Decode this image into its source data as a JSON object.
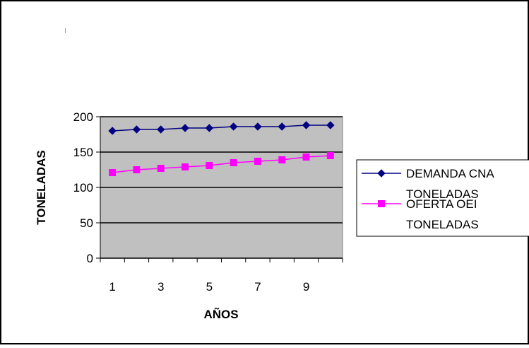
{
  "chart_data": {
    "type": "line",
    "categories": [
      "1",
      "2",
      "3",
      "4",
      "5",
      "6",
      "7",
      "8",
      "9",
      "10"
    ],
    "x_tick_labels": [
      "1",
      "3",
      "5",
      "7",
      "9"
    ],
    "series": [
      {
        "name": "DEMANDA CNA TONELADAS",
        "legend_lines": [
          "DEMANDA CNA",
          "TONELADAS"
        ],
        "values": [
          180,
          182,
          182,
          184,
          184,
          186,
          186,
          186,
          188,
          188
        ],
        "color": "#000080",
        "marker": "diamond"
      },
      {
        "name": "OFERTA OEI TONELADAS",
        "legend_lines": [
          "OFERTA OEI",
          "TONELADAS"
        ],
        "values": [
          121,
          125,
          127,
          129,
          131,
          135,
          137,
          139,
          143,
          145
        ],
        "color": "#ff00ff",
        "marker": "square"
      }
    ],
    "title": "",
    "xlabel": "AÑOS",
    "ylabel": "TONELADAS",
    "ylim": [
      0,
      200
    ],
    "y_ticks": [
      0,
      50,
      100,
      150,
      200
    ],
    "grid": true,
    "plot_background": "#c0c0c0",
    "legend_position": "right"
  }
}
